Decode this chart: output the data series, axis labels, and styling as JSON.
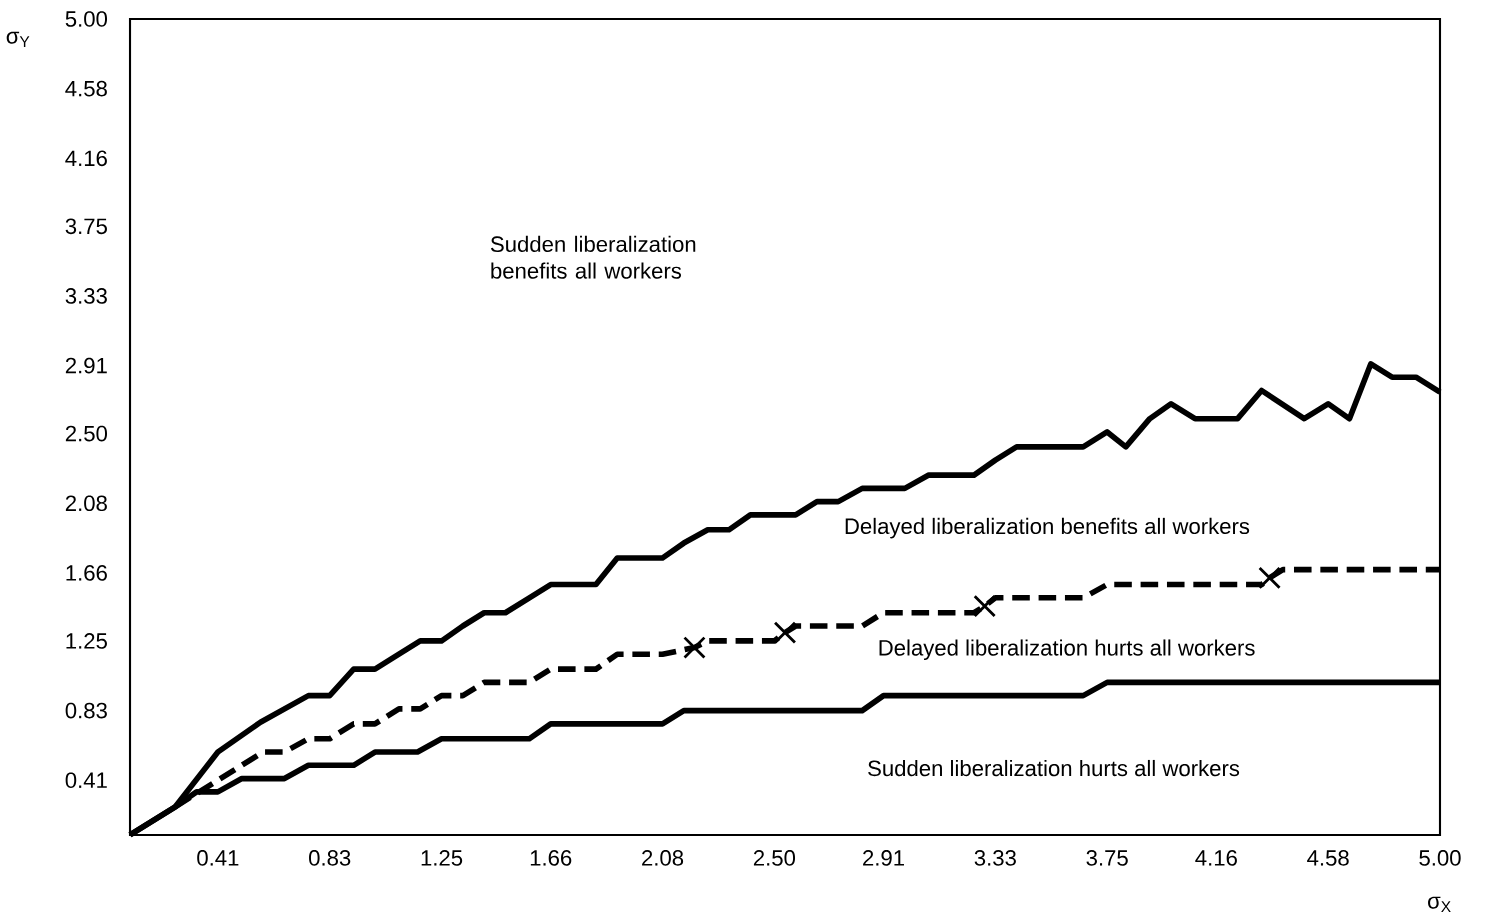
{
  "chart_data": {
    "type": "line",
    "xlabel": "σ$_{X}$",
    "ylabel": "σ$_{Y}$",
    "xlim": [
      0.08,
      5.0
    ],
    "ylim": [
      0.08,
      5.0
    ],
    "xticks": [
      0.41,
      0.83,
      1.25,
      1.66,
      2.08,
      {
        "value": 2.5,
        "label": "2.50"
      },
      2.91,
      3.33,
      3.75,
      4.16,
      4.58,
      {
        "value": 5.0,
        "label": "5.00"
      }
    ],
    "yticks": [
      0.41,
      0.83,
      1.25,
      1.66,
      2.08,
      {
        "value": 2.5,
        "label": "2.50"
      },
      2.91,
      3.33,
      3.75,
      4.16,
      4.58,
      {
        "value": 5.0,
        "label": "5.00"
      }
    ],
    "grid": false,
    "marker": "none",
    "annotations": [
      "Sudden liberalization benefits all workers",
      "Delayed liberalization benefits all workers",
      "Delayed liberalization hurts all workers",
      "Sudden liberalization hurts all workers"
    ],
    "series": [
      {
        "color": "#000000",
        "line_style": "solid",
        "x": [
          0.08,
          0.25,
          0.41,
          0.57,
          0.75,
          0.83,
          0.92,
          1.0,
          1.09,
          1.17,
          1.25,
          1.33,
          1.41,
          1.49,
          1.58,
          1.66,
          1.83,
          1.91,
          2.08,
          2.16,
          2.25,
          2.33,
          2.41,
          2.58,
          2.66,
          2.74,
          2.83,
          2.99,
          3.08,
          3.25,
          3.33,
          3.41,
          3.66,
          3.75,
          3.82,
          3.91,
          3.99,
          4.08,
          4.24,
          4.33,
          4.49,
          4.58,
          4.66,
          4.74,
          4.82,
          4.91,
          5.0
        ],
        "values": [
          0.08,
          0.25,
          0.58,
          0.76,
          0.92,
          0.92,
          1.08,
          1.08,
          1.17,
          1.25,
          1.25,
          1.34,
          1.42,
          1.42,
          1.51,
          1.59,
          1.59,
          1.75,
          1.75,
          1.84,
          1.92,
          1.92,
          2.01,
          2.01,
          2.09,
          2.09,
          2.17,
          2.17,
          2.25,
          2.25,
          2.34,
          2.42,
          2.42,
          2.51,
          2.42,
          2.59,
          2.68,
          2.59,
          2.59,
          2.76,
          2.59,
          2.68,
          2.59,
          2.92,
          2.84,
          2.84,
          2.75
        ]
      },
      {
        "color": "#000000",
        "line_style": "dashed",
        "x": [
          0.25,
          0.41,
          0.58,
          0.66,
          0.75,
          0.83,
          0.92,
          1.0,
          1.09,
          1.17,
          1.25,
          1.33,
          1.41,
          1.58,
          1.66,
          1.83,
          1.91,
          2.08,
          2.2,
          2.25,
          2.5,
          2.54,
          2.58,
          2.83,
          2.91,
          3.25,
          3.29,
          3.33,
          3.66,
          3.75,
          4.33,
          4.36,
          4.41,
          5.0
        ],
        "values": [
          0.25,
          0.41,
          0.58,
          0.58,
          0.66,
          0.66,
          0.75,
          0.75,
          0.84,
          0.84,
          0.92,
          0.92,
          1.0,
          1.0,
          1.08,
          1.08,
          1.17,
          1.17,
          1.21,
          1.25,
          1.25,
          1.3,
          1.34,
          1.34,
          1.42,
          1.42,
          1.46,
          1.51,
          1.51,
          1.59,
          1.59,
          1.63,
          1.68,
          1.68
        ]
      },
      {
        "type": "scatter",
        "color": "#000000",
        "marker": "cross",
        "x": [
          2.2,
          2.54,
          3.29,
          4.36
        ],
        "values": [
          1.21,
          1.3,
          1.46,
          1.63
        ]
      },
      {
        "color": "#000000",
        "line_style": "solid",
        "x": [
          0.08,
          0.25,
          0.33,
          0.41,
          0.5,
          0.66,
          0.75,
          0.92,
          1.0,
          1.16,
          1.25,
          1.58,
          1.66,
          2.08,
          2.16,
          2.83,
          2.91,
          3.66,
          3.75,
          5.0
        ],
        "values": [
          0.08,
          0.25,
          0.34,
          0.34,
          0.42,
          0.42,
          0.5,
          0.5,
          0.58,
          0.58,
          0.66,
          0.66,
          0.75,
          0.75,
          0.83,
          0.83,
          0.92,
          0.92,
          1.0,
          1.0
        ]
      }
    ]
  }
}
